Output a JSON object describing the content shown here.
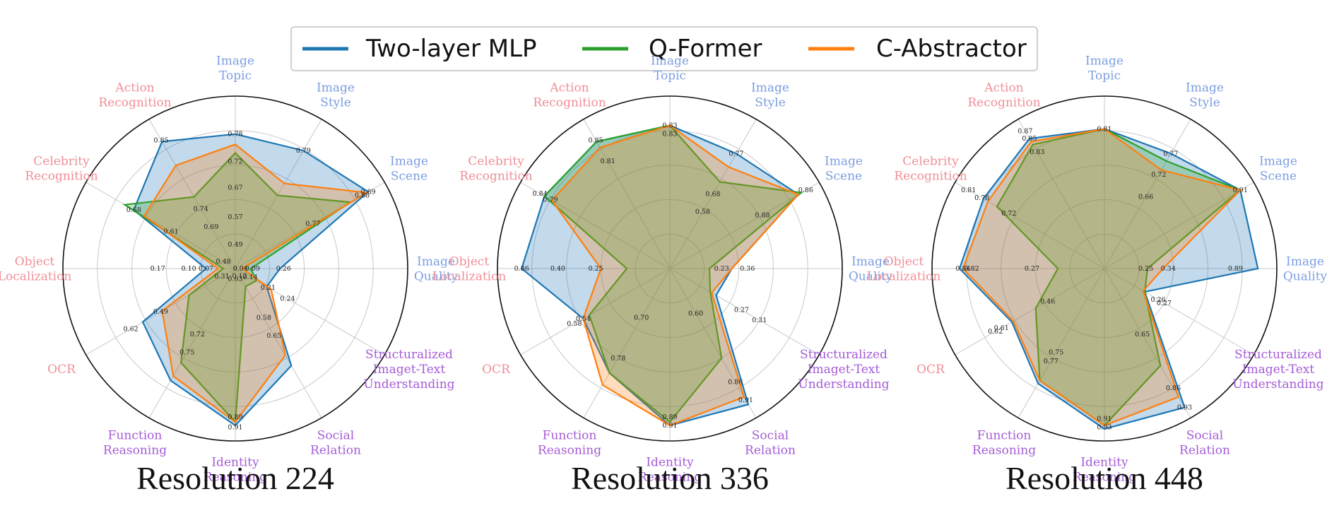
{
  "legend": {
    "items": [
      {
        "name": "Two-layer MLP",
        "color": "#1f77b4"
      },
      {
        "name": "Q-Former",
        "color": "#2ca02c"
      },
      {
        "name": "C-Abstractor",
        "color": "#ff7f0e"
      }
    ]
  },
  "chart_data": [
    {
      "type": "radar",
      "title": "Resolution 224",
      "axes": [
        {
          "label": "Image Topic",
          "group": "perception"
        },
        {
          "label": "Image Style",
          "group": "perception"
        },
        {
          "label": "Image Scene",
          "group": "perception"
        },
        {
          "label": "Image Quality",
          "group": "perception"
        },
        {
          "label": "Structuralized Imaget-Text Understanding",
          "group": "reasoning"
        },
        {
          "label": "Social Relation",
          "group": "reasoning"
        },
        {
          "label": "Identity Reasoning",
          "group": "reasoning"
        },
        {
          "label": "Function Reasoning",
          "group": "reasoning"
        },
        {
          "label": "OCR",
          "group": "perception-red"
        },
        {
          "label": "Object Localization",
          "group": "perception-red"
        },
        {
          "label": "Celebrity Recognition",
          "group": "perception-red"
        },
        {
          "label": "Action Recognition",
          "group": "perception-red"
        }
      ],
      "series": [
        {
          "name": "Two-layer MLP",
          "values": [
            0.78,
            0.79,
            0.89,
            0.26,
            0.21,
            0.65,
            0.91,
            0.75,
            0.62,
            0.17,
            0.68,
            0.85
          ]
        },
        {
          "name": "Q-Former",
          "values": [
            0.67,
            0.49,
            0.77,
            0.09,
            0.14,
            0.12,
            0.89,
            0.63,
            0.31,
            0.07,
            0.74,
            0.48
          ]
        },
        {
          "name": "C-Abstractor",
          "values": [
            0.72,
            0.57,
            0.88,
            0.04,
            0.24,
            0.58,
            0.89,
            0.72,
            0.49,
            0.1,
            0.61,
            0.69
          ]
        }
      ],
      "value_labels": [
        {
          "text": "0.78",
          "axis": 0,
          "r": 0.78
        },
        {
          "text": "0.72",
          "axis": 0,
          "r": 0.62
        },
        {
          "text": "0.67",
          "axis": 0,
          "r": 0.47
        },
        {
          "text": "0.57",
          "axis": 0,
          "r": 0.3
        },
        {
          "text": "0.49",
          "axis": 0,
          "r": 0.14
        },
        {
          "text": "0.79",
          "axis": 1,
          "r": 0.79
        },
        {
          "text": "0.89",
          "axis": 2,
          "r": 0.89
        },
        {
          "text": "0.88",
          "axis": 2,
          "r": 0.85
        },
        {
          "text": "0.77",
          "axis": 2,
          "r": 0.52
        },
        {
          "text": "0.26",
          "axis": 3,
          "r": 0.28
        },
        {
          "text": "0.09",
          "axis": 3,
          "r": 0.1
        },
        {
          "text": "0.04",
          "axis": 3,
          "r": 0.03
        },
        {
          "text": "0.24",
          "axis": 4,
          "r": 0.35
        },
        {
          "text": "0.21",
          "axis": 4,
          "r": 0.22
        },
        {
          "text": "0.14",
          "axis": 4,
          "r": 0.1
        },
        {
          "text": "0.65",
          "axis": 5,
          "r": 0.45
        },
        {
          "text": "0.58",
          "axis": 5,
          "r": 0.33
        },
        {
          "text": "0.12",
          "axis": 5,
          "r": 0.05
        },
        {
          "text": "0.89",
          "axis": 6,
          "r": 0.86
        },
        {
          "text": "0.91",
          "axis": 6,
          "r": 0.92
        },
        {
          "text": "0.63",
          "axis": 6,
          "r": 0.06
        },
        {
          "text": "0.75",
          "axis": 7,
          "r": 0.56
        },
        {
          "text": "0.72",
          "axis": 7,
          "r": 0.44
        },
        {
          "text": "0.62",
          "axis": 8,
          "r": 0.7
        },
        {
          "text": "0.49",
          "axis": 8,
          "r": 0.5
        },
        {
          "text": "0.31",
          "axis": 8,
          "r": 0.09
        },
        {
          "text": "0.17",
          "axis": 9,
          "r": 0.45
        },
        {
          "text": "0.10",
          "axis": 9,
          "r": 0.27
        },
        {
          "text": "0.07",
          "axis": 9,
          "r": 0.17
        },
        {
          "text": "0.68",
          "axis": 10,
          "r": 0.68
        },
        {
          "text": "0.61",
          "axis": 10,
          "r": 0.43
        },
        {
          "text": "0.48",
          "axis": 10,
          "r": 0.08
        },
        {
          "text": "0.74",
          "axis": 11,
          "r": 0.4
        },
        {
          "text": "0.69",
          "axis": 11,
          "r": 0.28
        },
        {
          "text": "0.85",
          "axis": 11,
          "r": 0.86
        }
      ]
    },
    {
      "type": "radar",
      "title": "Resolution 336",
      "axes": [
        {
          "label": "Image Topic",
          "group": "perception"
        },
        {
          "label": "Image Style",
          "group": "perception"
        },
        {
          "label": "Image Scene",
          "group": "perception"
        },
        {
          "label": "Image Quality",
          "group": "perception"
        },
        {
          "label": "Structuralized Imaget-Text Understanding",
          "group": "reasoning"
        },
        {
          "label": "Social Relation",
          "group": "reasoning"
        },
        {
          "label": "Identity Reasoning",
          "group": "reasoning"
        },
        {
          "label": "Function Reasoning",
          "group": "reasoning"
        },
        {
          "label": "OCR",
          "group": "perception-red"
        },
        {
          "label": "Object Localization",
          "group": "perception-red"
        },
        {
          "label": "Celebrity Recognition",
          "group": "perception-red"
        },
        {
          "label": "Action Recognition",
          "group": "perception-red"
        }
      ],
      "series": [
        {
          "name": "Two-layer MLP",
          "values": [
            0.83,
            0.77,
            0.86,
            0.36,
            0.31,
            0.91,
            0.91,
            0.7,
            0.58,
            0.86,
            0.84,
            0.85
          ]
        },
        {
          "name": "Q-Former",
          "values": [
            0.83,
            0.58,
            0.88,
            0.23,
            0.27,
            0.6,
            0.89,
            0.7,
            0.54,
            0.25,
            0.84,
            0.85
          ]
        },
        {
          "name": "C-Abstractor",
          "values": [
            0.83,
            0.68,
            0.86,
            0.36,
            0.28,
            0.86,
            0.91,
            0.78,
            0.58,
            0.4,
            0.79,
            0.81
          ]
        }
      ],
      "value_labels": [
        {
          "text": "0.83",
          "axis": 0,
          "r": 0.83
        },
        {
          "text": "0.83",
          "axis": 0,
          "r": 0.78
        },
        {
          "text": "0.77",
          "axis": 1,
          "r": 0.77
        },
        {
          "text": "0.68",
          "axis": 1,
          "r": 0.5
        },
        {
          "text": "0.58",
          "axis": 1,
          "r": 0.38
        },
        {
          "text": "0.86",
          "axis": 2,
          "r": 0.91
        },
        {
          "text": "0.88",
          "axis": 2,
          "r": 0.62
        },
        {
          "text": "0.36",
          "axis": 3,
          "r": 0.45
        },
        {
          "text": "0.23",
          "axis": 3,
          "r": 0.3
        },
        {
          "text": "0.31",
          "axis": 4,
          "r": 0.6
        },
        {
          "text": "0.27",
          "axis": 4,
          "r": 0.48
        },
        {
          "text": "0.91",
          "axis": 5,
          "r": 0.88
        },
        {
          "text": "0.86",
          "axis": 5,
          "r": 0.76
        },
        {
          "text": "0.60",
          "axis": 5,
          "r": 0.3
        },
        {
          "text": "0.89",
          "axis": 6,
          "r": 0.86
        },
        {
          "text": "0.91",
          "axis": 6,
          "r": 0.91
        },
        {
          "text": "0.70",
          "axis": 7,
          "r": 0.33
        },
        {
          "text": "0.78",
          "axis": 7,
          "r": 0.6
        },
        {
          "text": "0.54",
          "axis": 8,
          "r": 0.58
        },
        {
          "text": "0.58",
          "axis": 8,
          "r": 0.64
        },
        {
          "text": "0.86",
          "axis": 9,
          "r": 0.86
        },
        {
          "text": "0.40",
          "axis": 9,
          "r": 0.65
        },
        {
          "text": "0.25",
          "axis": 9,
          "r": 0.43
        },
        {
          "text": "0.84",
          "axis": 10,
          "r": 0.87
        },
        {
          "text": "0.79",
          "axis": 10,
          "r": 0.8
        },
        {
          "text": "0.85",
          "axis": 11,
          "r": 0.86
        },
        {
          "text": "0.81",
          "axis": 11,
          "r": 0.72
        }
      ]
    },
    {
      "type": "radar",
      "title": "Resolution 448",
      "axes": [
        {
          "label": "Image Topic",
          "group": "perception"
        },
        {
          "label": "Image Style",
          "group": "perception"
        },
        {
          "label": "Image Scene",
          "group": "perception"
        },
        {
          "label": "Image Quality",
          "group": "perception"
        },
        {
          "label": "Structuralized Imaget-Text Understanding",
          "group": "reasoning"
        },
        {
          "label": "Social Relation",
          "group": "reasoning"
        },
        {
          "label": "Identity Reasoning",
          "group": "reasoning"
        },
        {
          "label": "Function Reasoning",
          "group": "reasoning"
        },
        {
          "label": "OCR",
          "group": "perception-red"
        },
        {
          "label": "Object Localization",
          "group": "perception-red"
        },
        {
          "label": "Celebrity Recognition",
          "group": "perception-red"
        },
        {
          "label": "Action Recognition",
          "group": "perception-red"
        }
      ],
      "series": [
        {
          "name": "Two-layer MLP",
          "values": [
            0.81,
            0.77,
            0.91,
            0.89,
            0.27,
            0.93,
            0.93,
            0.77,
            0.62,
            0.84,
            0.81,
            0.87
          ]
        },
        {
          "name": "Q-Former",
          "values": [
            0.81,
            0.72,
            0.91,
            0.25,
            0.27,
            0.65,
            0.91,
            0.75,
            0.46,
            0.27,
            0.72,
            0.83
          ]
        },
        {
          "name": "C-Abstractor",
          "values": [
            0.81,
            0.66,
            0.91,
            0.34,
            0.26,
            0.86,
            0.91,
            0.75,
            0.61,
            0.82,
            0.78,
            0.85
          ]
        }
      ],
      "value_labels": [
        {
          "text": "0.81",
          "axis": 0,
          "r": 0.81
        },
        {
          "text": "0.77",
          "axis": 1,
          "r": 0.77
        },
        {
          "text": "0.72",
          "axis": 1,
          "r": 0.63
        },
        {
          "text": "0.66",
          "axis": 1,
          "r": 0.48
        },
        {
          "text": "0.91",
          "axis": 2,
          "r": 0.91
        },
        {
          "text": "0.89",
          "axis": 3,
          "r": 0.76
        },
        {
          "text": "0.34",
          "axis": 3,
          "r": 0.37
        },
        {
          "text": "0.25",
          "axis": 3,
          "r": 0.24
        },
        {
          "text": "0.27",
          "axis": 4,
          "r": 0.4
        },
        {
          "text": "0.26",
          "axis": 4,
          "r": 0.36
        },
        {
          "text": "0.93",
          "axis": 5,
          "r": 0.93
        },
        {
          "text": "0.86",
          "axis": 5,
          "r": 0.8
        },
        {
          "text": "0.65",
          "axis": 5,
          "r": 0.44
        },
        {
          "text": "0.91",
          "axis": 6,
          "r": 0.87
        },
        {
          "text": "0.93",
          "axis": 6,
          "r": 0.92
        },
        {
          "text": "0.75",
          "axis": 7,
          "r": 0.56
        },
        {
          "text": "0.77",
          "axis": 7,
          "r": 0.62
        },
        {
          "text": "0.61",
          "axis": 8,
          "r": 0.69
        },
        {
          "text": "0.62",
          "axis": 8,
          "r": 0.73
        },
        {
          "text": "0.46",
          "axis": 8,
          "r": 0.38
        },
        {
          "text": "0.84",
          "axis": 9,
          "r": 0.82
        },
        {
          "text": "0.82",
          "axis": 9,
          "r": 0.77
        },
        {
          "text": "0.27",
          "axis": 9,
          "r": 0.42
        },
        {
          "text": "0.81",
          "axis": 10,
          "r": 0.91
        },
        {
          "text": "0.78",
          "axis": 10,
          "r": 0.82
        },
        {
          "text": "0.72",
          "axis": 10,
          "r": 0.64
        },
        {
          "text": "0.87",
          "axis": 11,
          "r": 0.92
        },
        {
          "text": "0.85",
          "axis": 11,
          "r": 0.87
        },
        {
          "text": "0.83",
          "axis": 11,
          "r": 0.78
        }
      ]
    }
  ],
  "colors": {
    "perception": "#7b9ee0",
    "perception-red": "#ef8f96",
    "reasoning": "#a45bd6",
    "grid": "#c8c8c8",
    "outer": "#111111"
  }
}
